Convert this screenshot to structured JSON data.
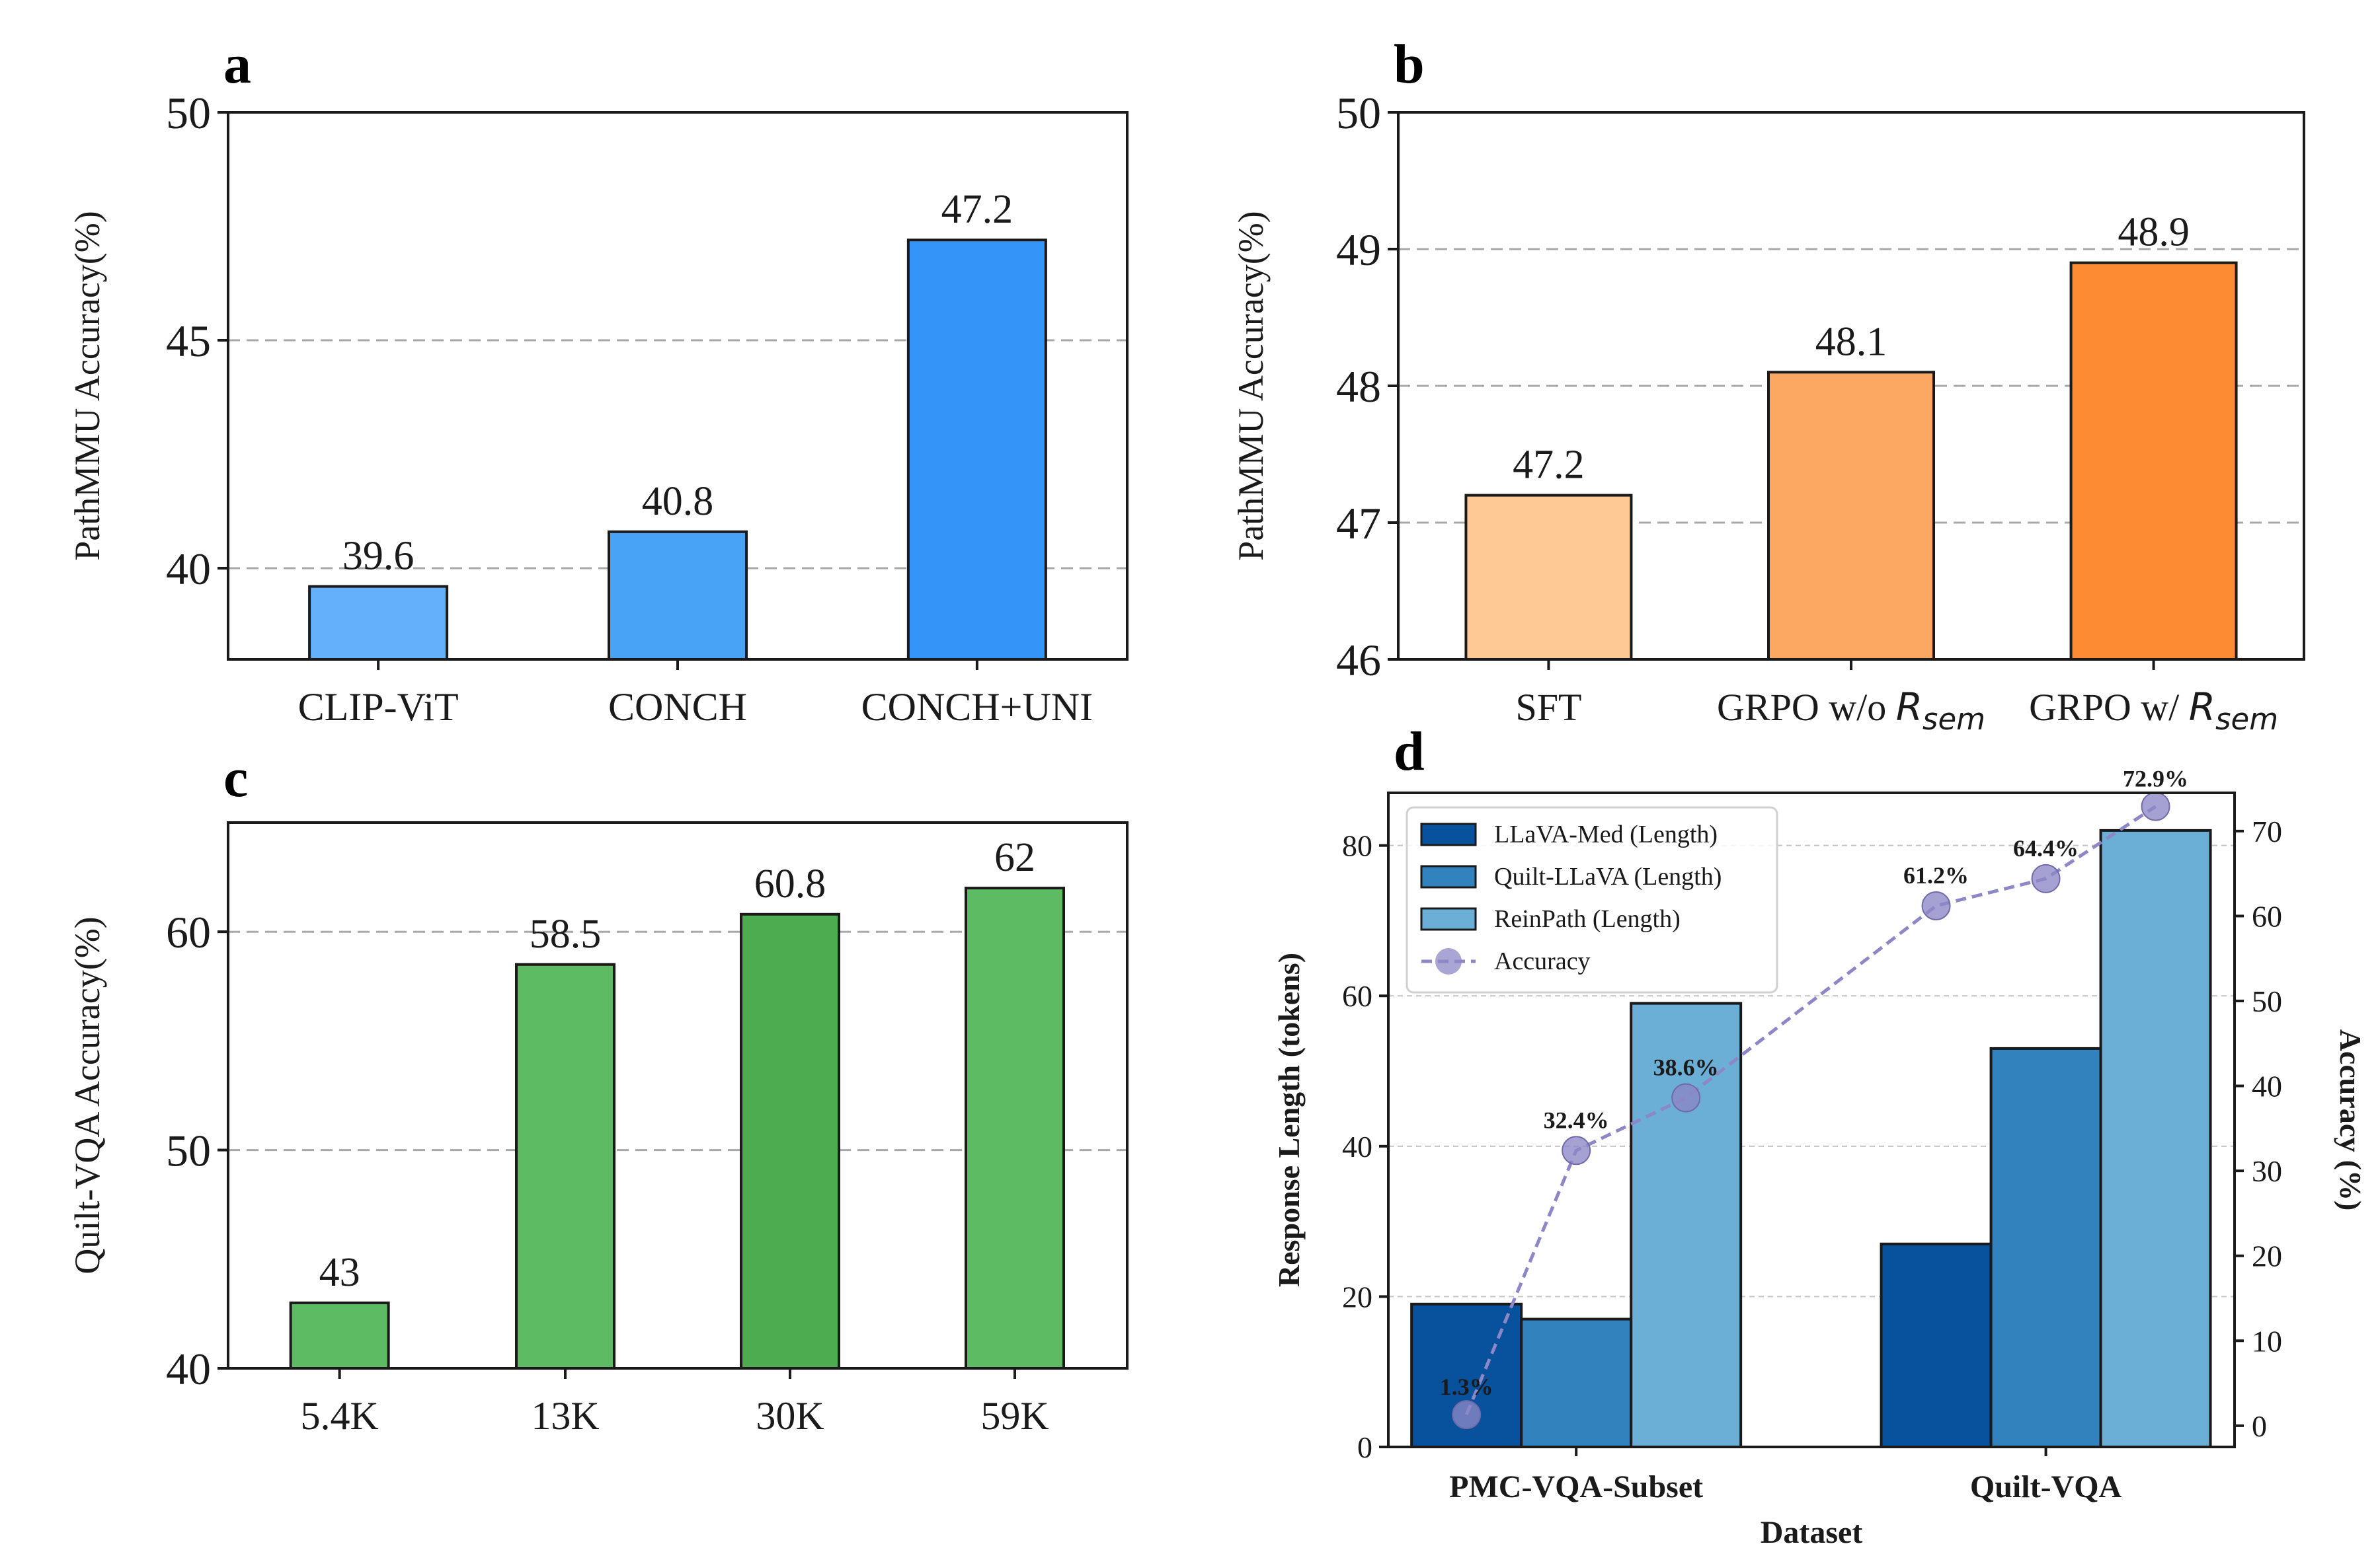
{
  "chart_data": [
    {
      "panel": "a",
      "type": "bar",
      "ylabel": "PathMMU   Accuracy(%)",
      "categories": [
        "CLIP-ViT",
        "CONCH",
        "CONCH+UNI"
      ],
      "values": [
        39.6,
        40.8,
        47.2
      ],
      "value_labels": [
        "39.6",
        "40.8",
        "47.2"
      ],
      "colors": [
        "#64b0fb",
        "#48a2f6",
        "#3594f7"
      ],
      "ylim": [
        38,
        50
      ],
      "yticks": [
        40,
        45,
        50
      ],
      "grid_at": [
        40,
        45
      ]
    },
    {
      "panel": "b",
      "type": "bar",
      "ylabel": "PathMMU   Accuracy(%)",
      "categories": [
        "SFT",
        "GRPO w/o R_sem",
        "GRPO w/ R_sem"
      ],
      "category_parts": [
        {
          "prefix": "SFT",
          "symbol": "",
          "sub": ""
        },
        {
          "prefix": "GRPO w/o ",
          "symbol": "R",
          "sub": "sem"
        },
        {
          "prefix": "GRPO w/ ",
          "symbol": "R",
          "sub": "sem"
        }
      ],
      "values": [
        47.2,
        48.1,
        48.9
      ],
      "value_labels": [
        "47.2",
        "48.1",
        "48.9"
      ],
      "colors": [
        "#fec995",
        "#fca862",
        "#fd8b34"
      ],
      "ylim": [
        46,
        50
      ],
      "yticks": [
        46,
        47,
        48,
        49,
        50
      ],
      "grid_at": [
        47,
        48,
        49
      ]
    },
    {
      "panel": "c",
      "type": "bar",
      "ylabel": "Quilt-VQA  Accuracy(%)",
      "categories": [
        "5.4K",
        "13K",
        "30K",
        "59K"
      ],
      "values": [
        43,
        58.5,
        60.8,
        62
      ],
      "value_labels": [
        "43",
        "58.5",
        "60.8",
        "62"
      ],
      "colors": [
        "#5dbb64",
        "#5dbb64",
        "#4cac4f",
        "#5dbb64"
      ],
      "ylim": [
        40,
        65
      ],
      "yticks": [
        40,
        50,
        60
      ],
      "grid_at": [
        50,
        60
      ]
    },
    {
      "panel": "d",
      "type": "bar",
      "xlabel": "Dataset",
      "ylabel": "Response Length (tokens)",
      "ylabel_right": "Accuracy (%)",
      "categories": [
        "PMC-VQA-Subset",
        "Quilt-VQA"
      ],
      "series": [
        {
          "name": "LLaVA-Med (Length)",
          "values": [
            19,
            27
          ],
          "color": "#08519c"
        },
        {
          "name": "Quilt-LLaVA (Length)",
          "values": [
            17,
            53
          ],
          "color": "#3182bd"
        },
        {
          "name": "ReinPath (Length)",
          "values": [
            59,
            82
          ],
          "color": "#6baed6"
        }
      ],
      "line_series": {
        "name": "Accuracy",
        "values": [
          1.3,
          32.4,
          38.6,
          61.2,
          64.4,
          72.9
        ],
        "labels": [
          "1.3%",
          "32.4%",
          "38.6%",
          "61.2%",
          "64.4%",
          "72.9%"
        ],
        "color": "#8c87c6"
      },
      "ylim": [
        0,
        87
      ],
      "yticks": [
        0,
        20,
        40,
        60,
        80
      ],
      "ylim_right": [
        -2.5,
        74.5
      ],
      "yticks_right": [
        0,
        10,
        20,
        30,
        40,
        50,
        60,
        70
      ],
      "legend": "top-left"
    }
  ]
}
